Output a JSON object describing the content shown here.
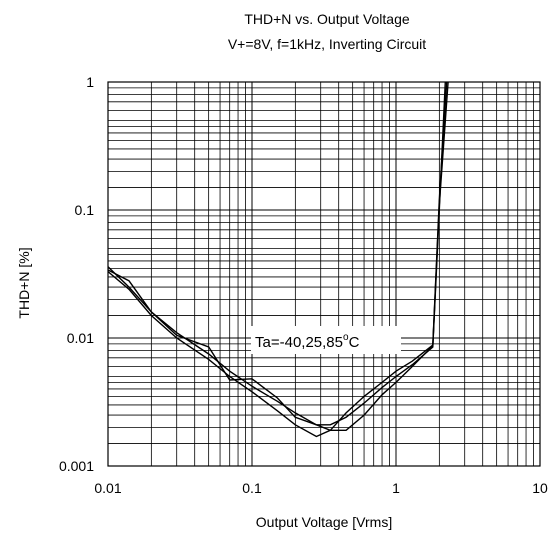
{
  "chart_data": {
    "type": "line",
    "title": "THD+N vs. Output Voltage",
    "subtitle": "V+=8V,  f=1kHz, Inverting Circuit",
    "xlabel": "Output Voltage [Vrms]",
    "ylabel": "THD+N [%]",
    "xscale": "log",
    "yscale": "log",
    "xlim": [
      0.01,
      10
    ],
    "ylim": [
      0.001,
      1
    ],
    "grid": true,
    "x_tick_labels": [
      "0.01",
      "0.1",
      "1",
      "10"
    ],
    "y_tick_labels": [
      "0.001",
      "0.01",
      "0.1",
      "1"
    ],
    "annotation": {
      "prefix": "Ta=-40,25,85",
      "sup": "o",
      "suffix": "C"
    },
    "series": [
      {
        "x": [
          0.01,
          0.014,
          0.02,
          0.03,
          0.05,
          0.07,
          0.1,
          0.15,
          0.2,
          0.28,
          0.35,
          0.45,
          0.6,
          0.8,
          1.0,
          1.3,
          1.8,
          2.0,
          2.2
        ],
        "y": [
          0.036,
          0.025,
          0.016,
          0.011,
          0.0075,
          0.0055,
          0.0042,
          0.0032,
          0.0026,
          0.0021,
          0.0021,
          0.0024,
          0.0031,
          0.0041,
          0.005,
          0.0062,
          0.0085,
          0.1,
          1.0
        ]
      },
      {
        "x": [
          0.01,
          0.014,
          0.02,
          0.03,
          0.05,
          0.07,
          0.1,
          0.15,
          0.2,
          0.28,
          0.35,
          0.45,
          0.6,
          0.8,
          1.0,
          1.3,
          1.8,
          2.0,
          2.25
        ],
        "y": [
          0.033,
          0.024,
          0.015,
          0.01,
          0.0068,
          0.005,
          0.0038,
          0.0027,
          0.0021,
          0.0017,
          0.0019,
          0.0026,
          0.0035,
          0.0045,
          0.0055,
          0.0066,
          0.0088,
          0.12,
          1.0
        ]
      },
      {
        "x": [
          0.01,
          0.014,
          0.02,
          0.03,
          0.05,
          0.07,
          0.1,
          0.15,
          0.2,
          0.28,
          0.35,
          0.45,
          0.6,
          0.8,
          1.0,
          1.3,
          1.8,
          2.0,
          2.3
        ],
        "y": [
          0.034,
          0.028,
          0.016,
          0.0105,
          0.0085,
          0.0047,
          0.0048,
          0.0034,
          0.0024,
          0.0021,
          0.0019,
          0.0019,
          0.0025,
          0.0036,
          0.0045,
          0.006,
          0.0087,
          0.11,
          1.0
        ]
      }
    ]
  }
}
